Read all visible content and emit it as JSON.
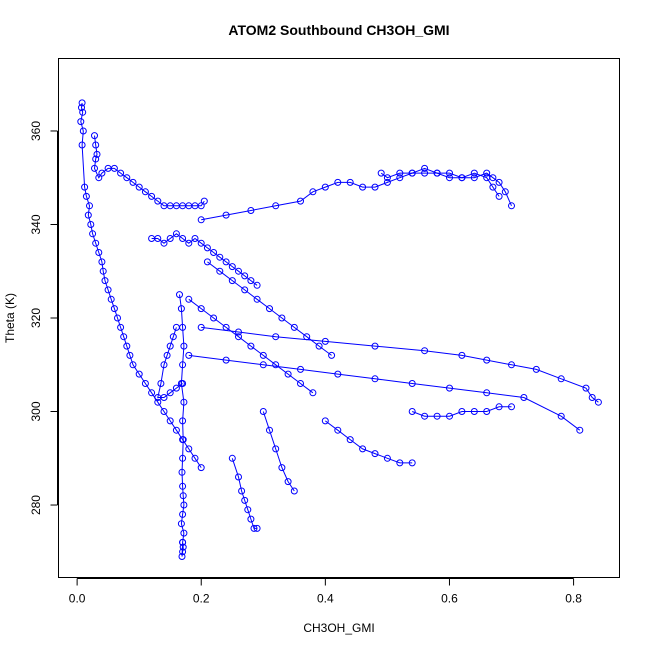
{
  "chart_data": {
    "type": "scatter",
    "title": "ATOM2 Southbound CH3OH_GMI",
    "xlabel": "CH3OH_GMI",
    "ylabel": "Theta (K)",
    "xlim": [
      -0.03,
      0.874
    ],
    "ylim": [
      264.5,
      375.5
    ],
    "x_ticks": [
      "0.0",
      "0.2",
      "0.4",
      "0.6",
      "0.8"
    ],
    "y_ticks": [
      "280",
      "300",
      "320",
      "340",
      "360"
    ],
    "grid": false,
    "marker": "open-circle",
    "connected": true,
    "color": "#0000ff",
    "series": [
      {
        "x": [
          0.008,
          0.007,
          0.009,
          0.006,
          0.01,
          0.008,
          0.012,
          0.015,
          0.02,
          0.018,
          0.022,
          0.025,
          0.03,
          0.035,
          0.04,
          0.042,
          0.045,
          0.05,
          0.055,
          0.06,
          0.065,
          0.07,
          0.075,
          0.08,
          0.085,
          0.09,
          0.1,
          0.11,
          0.12,
          0.13,
          0.14,
          0.15,
          0.16,
          0.17,
          0.18,
          0.19,
          0.2
        ],
        "y": [
          366,
          365,
          364,
          362,
          360,
          357,
          348,
          346,
          344,
          342,
          340,
          338,
          336,
          334,
          332,
          330,
          328,
          326,
          324,
          322,
          320,
          318,
          316,
          314,
          312,
          310,
          308,
          306,
          304,
          302,
          300,
          298,
          296,
          294,
          292,
          290,
          288
        ]
      },
      {
        "x": [
          0.028,
          0.03,
          0.032,
          0.03,
          0.028,
          0.035,
          0.04,
          0.05,
          0.06,
          0.07,
          0.08,
          0.09,
          0.1,
          0.11,
          0.12,
          0.13,
          0.14,
          0.15,
          0.16,
          0.17,
          0.18,
          0.19,
          0.2,
          0.205
        ],
        "y": [
          359,
          357,
          355,
          354,
          352,
          350,
          351,
          352,
          352,
          351,
          350,
          349,
          348,
          347,
          346,
          345,
          344,
          344,
          344,
          344,
          344,
          344,
          344,
          345
        ]
      },
      {
        "x": [
          0.165,
          0.168,
          0.17,
          0.172,
          0.17,
          0.168,
          0.172,
          0.17,
          0.171,
          0.17,
          0.169,
          0.17,
          0.171,
          0.172,
          0.17,
          0.168,
          0.172,
          0.17,
          0.171,
          0.17,
          0.169,
          0.17
        ],
        "y": [
          325,
          322,
          318,
          314,
          310,
          306,
          302,
          298,
          294,
          290,
          287,
          284,
          282,
          280,
          278,
          276,
          274,
          272,
          271,
          270,
          269,
          272
        ]
      },
      {
        "x": [
          0.12,
          0.13,
          0.14,
          0.15,
          0.16,
          0.17,
          0.18,
          0.19,
          0.2,
          0.21,
          0.22,
          0.23,
          0.24,
          0.25,
          0.26,
          0.27,
          0.28,
          0.29
        ],
        "y": [
          337,
          337,
          336,
          337,
          338,
          337,
          336,
          337,
          336,
          335,
          334,
          333,
          332,
          331,
          330,
          329,
          328,
          327
        ]
      },
      {
        "x": [
          0.2,
          0.24,
          0.28,
          0.32,
          0.36,
          0.38,
          0.4,
          0.42,
          0.44,
          0.46,
          0.48,
          0.5,
          0.52,
          0.54,
          0.56,
          0.58,
          0.6,
          0.62,
          0.64,
          0.66,
          0.67,
          0.68
        ],
        "y": [
          341,
          342,
          343,
          344,
          345,
          347,
          348,
          349,
          349,
          348,
          348,
          349,
          350,
          351,
          351,
          351,
          350,
          350,
          351,
          350,
          348,
          346
        ]
      },
      {
        "x": [
          0.49,
          0.5,
          0.52,
          0.54,
          0.56,
          0.58,
          0.6,
          0.62,
          0.64,
          0.66,
          0.67,
          0.68,
          0.69,
          0.7
        ],
        "y": [
          351,
          350,
          351,
          351,
          352,
          351,
          351,
          350,
          350,
          351,
          350,
          349,
          347,
          344
        ]
      },
      {
        "x": [
          0.2,
          0.26,
          0.32,
          0.4,
          0.48,
          0.56,
          0.62,
          0.66,
          0.7,
          0.74,
          0.78,
          0.82,
          0.83,
          0.84
        ],
        "y": [
          318,
          317,
          316,
          315,
          314,
          313,
          312,
          311,
          310,
          309,
          307,
          305,
          303,
          302
        ]
      },
      {
        "x": [
          0.18,
          0.24,
          0.3,
          0.36,
          0.42,
          0.48,
          0.54,
          0.6,
          0.66,
          0.72,
          0.78,
          0.81
        ],
        "y": [
          312,
          311,
          310,
          309,
          308,
          307,
          306,
          305,
          304,
          303,
          299,
          296
        ]
      },
      {
        "x": [
          0.25,
          0.26,
          0.265,
          0.27,
          0.275,
          0.28,
          0.285,
          0.29
        ],
        "y": [
          290,
          286,
          283,
          281,
          279,
          277,
          275,
          275
        ]
      },
      {
        "x": [
          0.3,
          0.31,
          0.32,
          0.33,
          0.34,
          0.35
        ],
        "y": [
          300,
          296,
          292,
          288,
          285,
          283
        ]
      },
      {
        "x": [
          0.4,
          0.42,
          0.44,
          0.46,
          0.48,
          0.5,
          0.52,
          0.54
        ],
        "y": [
          298,
          296,
          294,
          292,
          291,
          290,
          289,
          289
        ]
      },
      {
        "x": [
          0.54,
          0.56,
          0.58,
          0.6,
          0.62,
          0.64,
          0.66,
          0.68,
          0.7
        ],
        "y": [
          300,
          299,
          299,
          299,
          300,
          300,
          300,
          301,
          301
        ]
      },
      {
        "x": [
          0.16,
          0.155,
          0.15,
          0.145,
          0.14,
          0.135,
          0.13,
          0.14,
          0.15,
          0.16,
          0.17
        ],
        "y": [
          318,
          316,
          314,
          312,
          310,
          306,
          303,
          303,
          304,
          305,
          306
        ]
      },
      {
        "x": [
          0.21,
          0.23,
          0.25,
          0.27,
          0.29,
          0.31,
          0.33,
          0.35,
          0.37,
          0.39,
          0.41
        ],
        "y": [
          332,
          330,
          328,
          326,
          324,
          322,
          320,
          318,
          316,
          314,
          312
        ]
      },
      {
        "x": [
          0.18,
          0.2,
          0.22,
          0.24,
          0.26,
          0.28,
          0.3,
          0.32,
          0.34,
          0.36,
          0.38
        ],
        "y": [
          324,
          322,
          320,
          318,
          316,
          314,
          312,
          310,
          308,
          306,
          304
        ]
      }
    ]
  }
}
